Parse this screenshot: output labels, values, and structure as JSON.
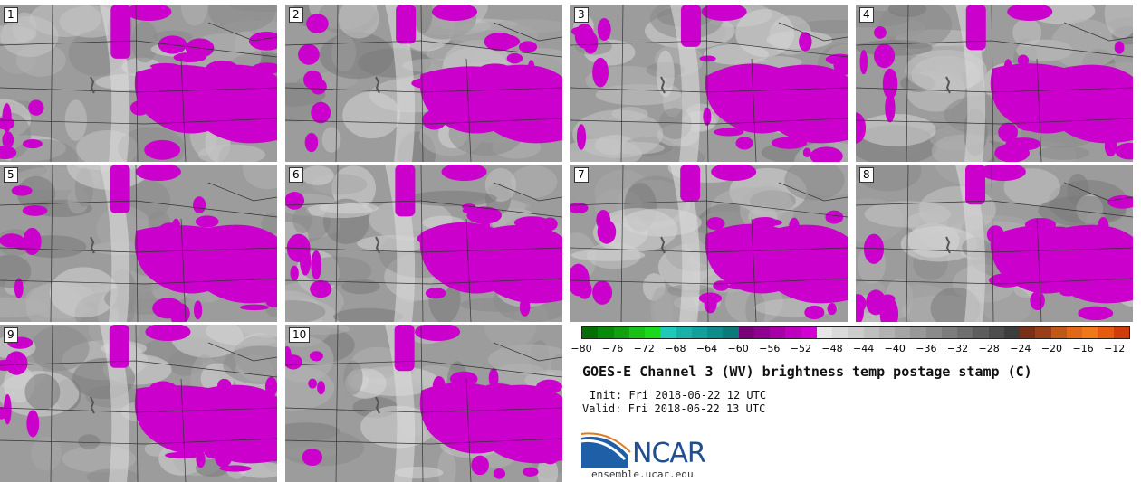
{
  "panels": [
    {
      "label": "1"
    },
    {
      "label": "2"
    },
    {
      "label": "3"
    },
    {
      "label": "4"
    },
    {
      "label": "5"
    },
    {
      "label": "6"
    },
    {
      "label": "7"
    },
    {
      "label": "8"
    },
    {
      "label": "9"
    },
    {
      "label": "10"
    }
  ],
  "colorbar": {
    "colors": [
      "#056e05",
      "#0a8a0a",
      "#10a010",
      "#18c018",
      "#1ad91a",
      "#20c8b8",
      "#18b0a8",
      "#12a09c",
      "#0e8c8c",
      "#0c7a7a",
      "#7a007a",
      "#900090",
      "#a800a8",
      "#c000c0",
      "#d300d3",
      "#e6e6e6",
      "#d9d9d9",
      "#cccccc",
      "#bfbfbf",
      "#b2b2b2",
      "#a5a5a5",
      "#989898",
      "#8a8a8a",
      "#7c7c7c",
      "#6e6e6e",
      "#5e5e5e",
      "#4e4e4e",
      "#3e3e3e",
      "#7a3018",
      "#9a4018",
      "#c05818",
      "#e06818",
      "#f07818",
      "#e65a10",
      "#d03c0c"
    ],
    "tick_labels": [
      "−80",
      "−76",
      "−72",
      "−68",
      "−64",
      "−60",
      "−56",
      "−52",
      "−48",
      "−44",
      "−40",
      "−36",
      "−32",
      "−28",
      "−24",
      "−20",
      "−16",
      "−12"
    ],
    "min": -80,
    "max": -10
  },
  "title": "GOES-E Channel 3 (WV) brightness temp postage stamp (C)",
  "init": "Init: Fri 2018-06-22 12 UTC",
  "valid": "Valid: Fri 2018-06-22 13 UTC",
  "logo_text": "NCAR",
  "site": "ensemble.ucar.edu"
}
